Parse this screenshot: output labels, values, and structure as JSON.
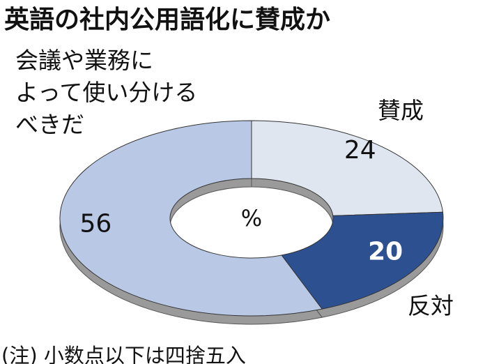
{
  "chart_data": {
    "type": "donut",
    "title": "英語の社内公用語化に賛成か",
    "categories": [
      "賛成",
      "反対",
      "会議や業務に\nよって使い分ける\nべきだ"
    ],
    "values": [
      24,
      20,
      56
    ],
    "colors": [
      "#dfe6f0",
      "#2d5190",
      "#b9c9e5"
    ],
    "center_label": "%",
    "note": "(注) 小数点以下は四捨五入"
  }
}
